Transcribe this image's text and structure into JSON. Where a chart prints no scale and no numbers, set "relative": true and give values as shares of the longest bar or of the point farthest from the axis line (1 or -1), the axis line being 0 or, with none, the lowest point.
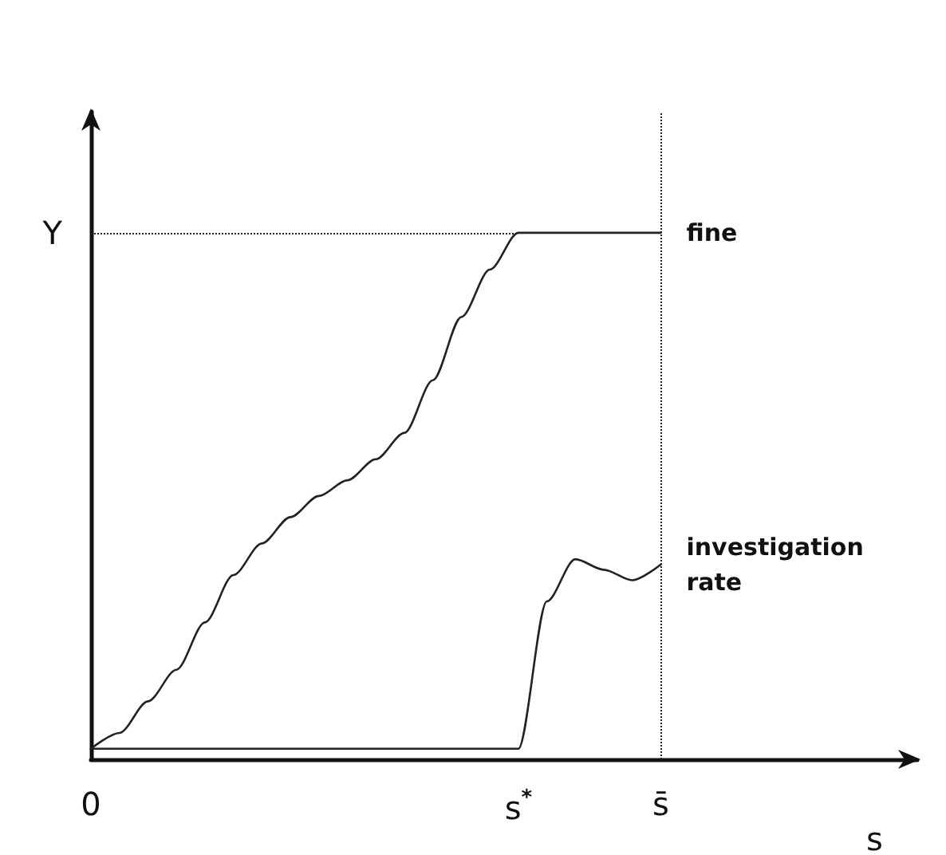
{
  "chart_data": {
    "type": "line",
    "relative": true,
    "xlabel": "s",
    "categories": [
      "0",
      null,
      null,
      null,
      null,
      null,
      null,
      null,
      null,
      null,
      null,
      null,
      null,
      null,
      null,
      "s$^{*}$",
      null,
      null,
      null,
      null,
      "s̄",
      null,
      null,
      null,
      null,
      null,
      null,
      null,
      null,
      null
    ],
    "series": [
      {
        "name": "fine",
        "color": "#222222",
        "values": [
          0.02,
          0.05,
          0.11,
          0.17,
          0.26,
          0.35,
          0.41,
          0.46,
          0.5,
          0.53,
          0.57,
          0.62,
          0.72,
          0.84,
          0.93,
          1,
          1,
          1,
          1,
          1,
          1,
          null,
          null,
          null,
          null,
          null,
          null,
          null,
          null,
          null
        ]
      },
      {
        "name": "investigation rate",
        "color": "#222222",
        "values": [
          0.02,
          0.02,
          0.02,
          0.02,
          0.02,
          0.02,
          0.02,
          0.02,
          0.02,
          0.02,
          0.02,
          0.02,
          0.02,
          0.02,
          0.02,
          0.02,
          0.3,
          0.38,
          0.36,
          0.34,
          0.37,
          null,
          null,
          null,
          null,
          null,
          null,
          null,
          null,
          null
        ]
      }
    ],
    "ref_lines": [
      {
        "axis": "y",
        "value": 1,
        "label": "Y",
        "line_style": "dotted"
      },
      {
        "axis": "x",
        "value": "s̄",
        "line_style": "dotted"
      }
    ],
    "grid": false,
    "legend": false,
    "marker": "none",
    "line_style": "solid"
  }
}
